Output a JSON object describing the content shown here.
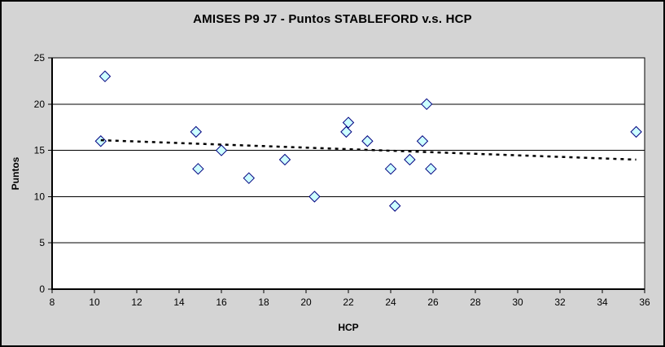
{
  "chart_data": {
    "type": "scatter",
    "title": "AMISES P9 J7 - Puntos STABLEFORD v.s. HCP",
    "xlabel": "HCP",
    "ylabel": "Puntos",
    "xlim": [
      8,
      36
    ],
    "ylim": [
      0,
      25
    ],
    "x_ticks": [
      8,
      10,
      12,
      14,
      16,
      18,
      20,
      22,
      24,
      26,
      28,
      30,
      32,
      34,
      36
    ],
    "y_ticks": [
      0,
      5,
      10,
      15,
      20,
      25
    ],
    "grid": "horizontal-only",
    "legend_position": "none",
    "series": [
      {
        "name": "Puntos STABLEFORD",
        "marker": "diamond",
        "marker_fill": "#CCFFFF",
        "marker_stroke": "#000080",
        "x": [
          10.3,
          10.5,
          14.8,
          14.9,
          16,
          17.3,
          19,
          20.4,
          21.9,
          22,
          22.9,
          24,
          24.2,
          24.9,
          25.5,
          25.7,
          25.9,
          35.6
        ],
        "y": [
          16,
          23,
          17,
          13,
          15,
          12,
          14,
          10,
          17,
          18,
          16,
          13,
          9,
          14,
          16,
          20,
          13,
          17
        ]
      }
    ],
    "trendline": {
      "type": "linear",
      "style": "dashed",
      "color": "#000000",
      "x_start": 10.3,
      "y_start": 16.1,
      "x_end": 35.6,
      "y_end": 14.0
    },
    "colors": {
      "chart_bg": "#D4D4D4",
      "plot_bg": "#FFFFFF",
      "axis": "#000000",
      "gridline": "#000000",
      "text": "#000000"
    }
  }
}
